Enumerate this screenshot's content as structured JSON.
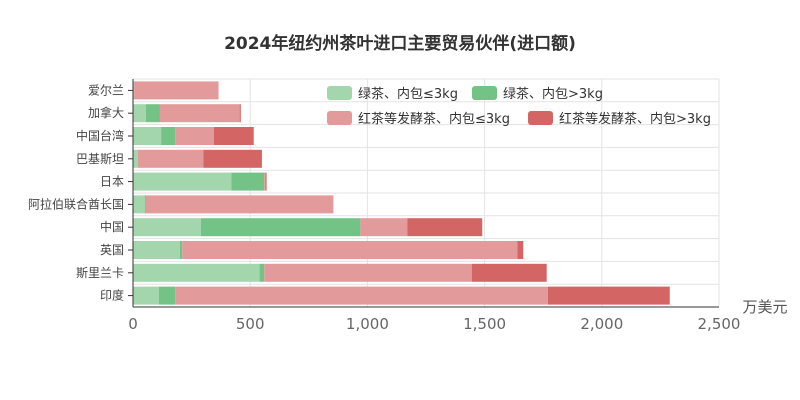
{
  "chart_data": {
    "type": "bar",
    "orientation": "horizontal",
    "stacked": true,
    "title": "2024年纽约州茶叶进口主要贸易伙伴(进口额)",
    "xlabel": "万美元",
    "ylabel": "",
    "xlim": [
      0,
      2500
    ],
    "xticks": [
      0,
      500,
      1000,
      1500,
      2000,
      2500
    ],
    "xtick_labels": [
      "0",
      "500",
      "1,000",
      "1,500",
      "2,000",
      "2,500"
    ],
    "grid": true,
    "legend_position": "top-right",
    "categories": [
      "印度",
      "斯里兰卡",
      "英国",
      "中国",
      "阿拉伯联合酋长国",
      "日本",
      "巴基斯坦",
      "中国台湾",
      "加拿大",
      "爱尔兰"
    ],
    "series": [
      {
        "name": "绿茶、内包≤3kg",
        "color": "#a3d6ad",
        "values": [
          110,
          540,
          200,
          290,
          50,
          420,
          20,
          120,
          55,
          5
        ]
      },
      {
        "name": "绿茶、内包>3kg",
        "color": "#72c385",
        "values": [
          70,
          20,
          10,
          680,
          5,
          140,
          0,
          60,
          60,
          0
        ]
      },
      {
        "name": "红茶等发酵茶、内包≤3kg",
        "color": "#e29a9a",
        "values": [
          1590,
          885,
          1430,
          200,
          800,
          5,
          280,
          165,
          340,
          360
        ]
      },
      {
        "name": "红茶等发酵茶、内包>3kg",
        "color": "#d46565",
        "values": [
          520,
          320,
          25,
          320,
          0,
          5,
          250,
          170,
          5,
          0
        ]
      }
    ]
  }
}
